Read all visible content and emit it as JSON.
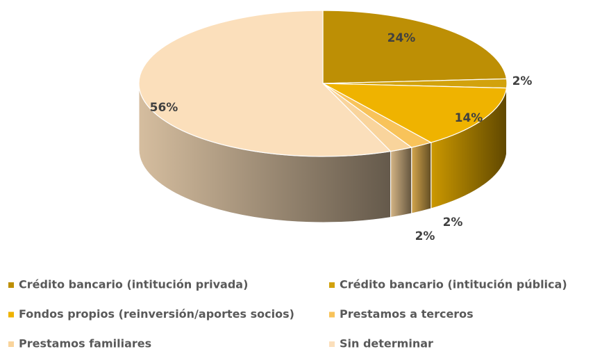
{
  "chart_data": {
    "type": "pie",
    "categories": [
      "Crédito bancario (intitución privada)",
      "Crédito bancario (intitución pública)",
      "Fondos propios (reinversión/aportes socios)",
      "Prestamos a terceros",
      "Prestamos familiares",
      "Sin determinar"
    ],
    "values": [
      24,
      2,
      14,
      2,
      2,
      56
    ],
    "value_labels": [
      "24%",
      "2%",
      "14%",
      "2%",
      "2%",
      "56%"
    ],
    "colors": [
      "#bd8f05",
      "#d2a20d",
      "#efb300",
      "#f8c35a",
      "#f9d49c",
      "#fbdfbb"
    ],
    "legend": "bottom"
  }
}
